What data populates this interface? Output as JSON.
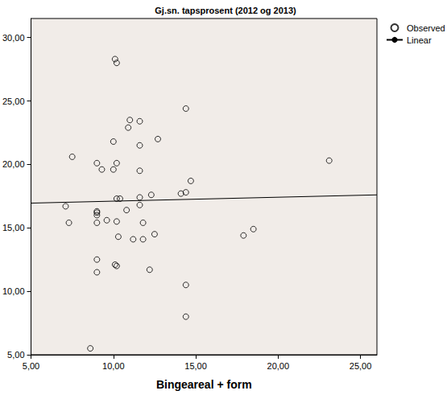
{
  "chart_data": {
    "type": "scatter",
    "title": "Gj.sn. tapsprosent (2012 og 2013)",
    "x_label": "Bingeareal + form",
    "xlim": [
      5,
      26
    ],
    "xticks": [
      {
        "value": 5,
        "label": "5,00"
      },
      {
        "value": 10,
        "label": "10,00"
      },
      {
        "value": 15,
        "label": "15,00"
      },
      {
        "value": 20,
        "label": "20,00"
      },
      {
        "value": 25,
        "label": "25,00"
      }
    ],
    "ylim": [
      5,
      31.5
    ],
    "yticks": [
      {
        "value": 5,
        "label": "5,00"
      },
      {
        "value": 10,
        "label": "10,00"
      },
      {
        "value": 15,
        "label": "15,00"
      },
      {
        "value": 20,
        "label": "20,00"
      },
      {
        "value": 25,
        "label": "25,00"
      },
      {
        "value": 30,
        "label": "30,00"
      }
    ],
    "grid": false,
    "legend": "right",
    "series": [
      {
        "name": "Observed",
        "type": "scatter",
        "marker": "circle_open",
        "color": "#000000",
        "x": [
          10.1,
          10.2,
          14.4,
          11.0,
          11.6,
          10.9,
          12.7,
          10.0,
          11.6,
          7.5,
          9.0,
          10.2,
          23.1,
          9.3,
          10.0,
          11.6,
          14.7,
          14.1,
          14.4,
          12.3,
          10.2,
          10.4,
          11.6,
          11.6,
          7.1,
          10.8,
          9.0,
          9.0,
          9.0,
          7.3,
          9.0,
          9.6,
          10.2,
          11.8,
          10.3,
          11.2,
          11.8,
          12.5,
          17.9,
          18.5,
          9.0,
          10.1,
          10.2,
          12.2,
          9.0,
          14.4,
          14.4,
          8.6
        ],
        "values": [
          28.3,
          28.0,
          24.4,
          23.5,
          23.4,
          22.9,
          22.0,
          21.8,
          21.5,
          20.6,
          20.1,
          20.1,
          20.3,
          19.6,
          19.6,
          19.5,
          18.7,
          17.7,
          17.8,
          17.6,
          17.3,
          17.3,
          17.4,
          16.8,
          16.7,
          16.4,
          16.3,
          16.2,
          16.0,
          15.4,
          15.4,
          15.6,
          15.5,
          15.4,
          14.3,
          14.1,
          14.1,
          14.5,
          14.4,
          14.9,
          12.5,
          12.1,
          12.0,
          11.7,
          11.5,
          10.5,
          8.0,
          5.5
        ]
      },
      {
        "name": "Linear",
        "type": "line",
        "line_style": "solid",
        "color": "#000000",
        "x": [
          5,
          26
        ],
        "values": [
          16.95,
          17.6
        ]
      }
    ]
  }
}
